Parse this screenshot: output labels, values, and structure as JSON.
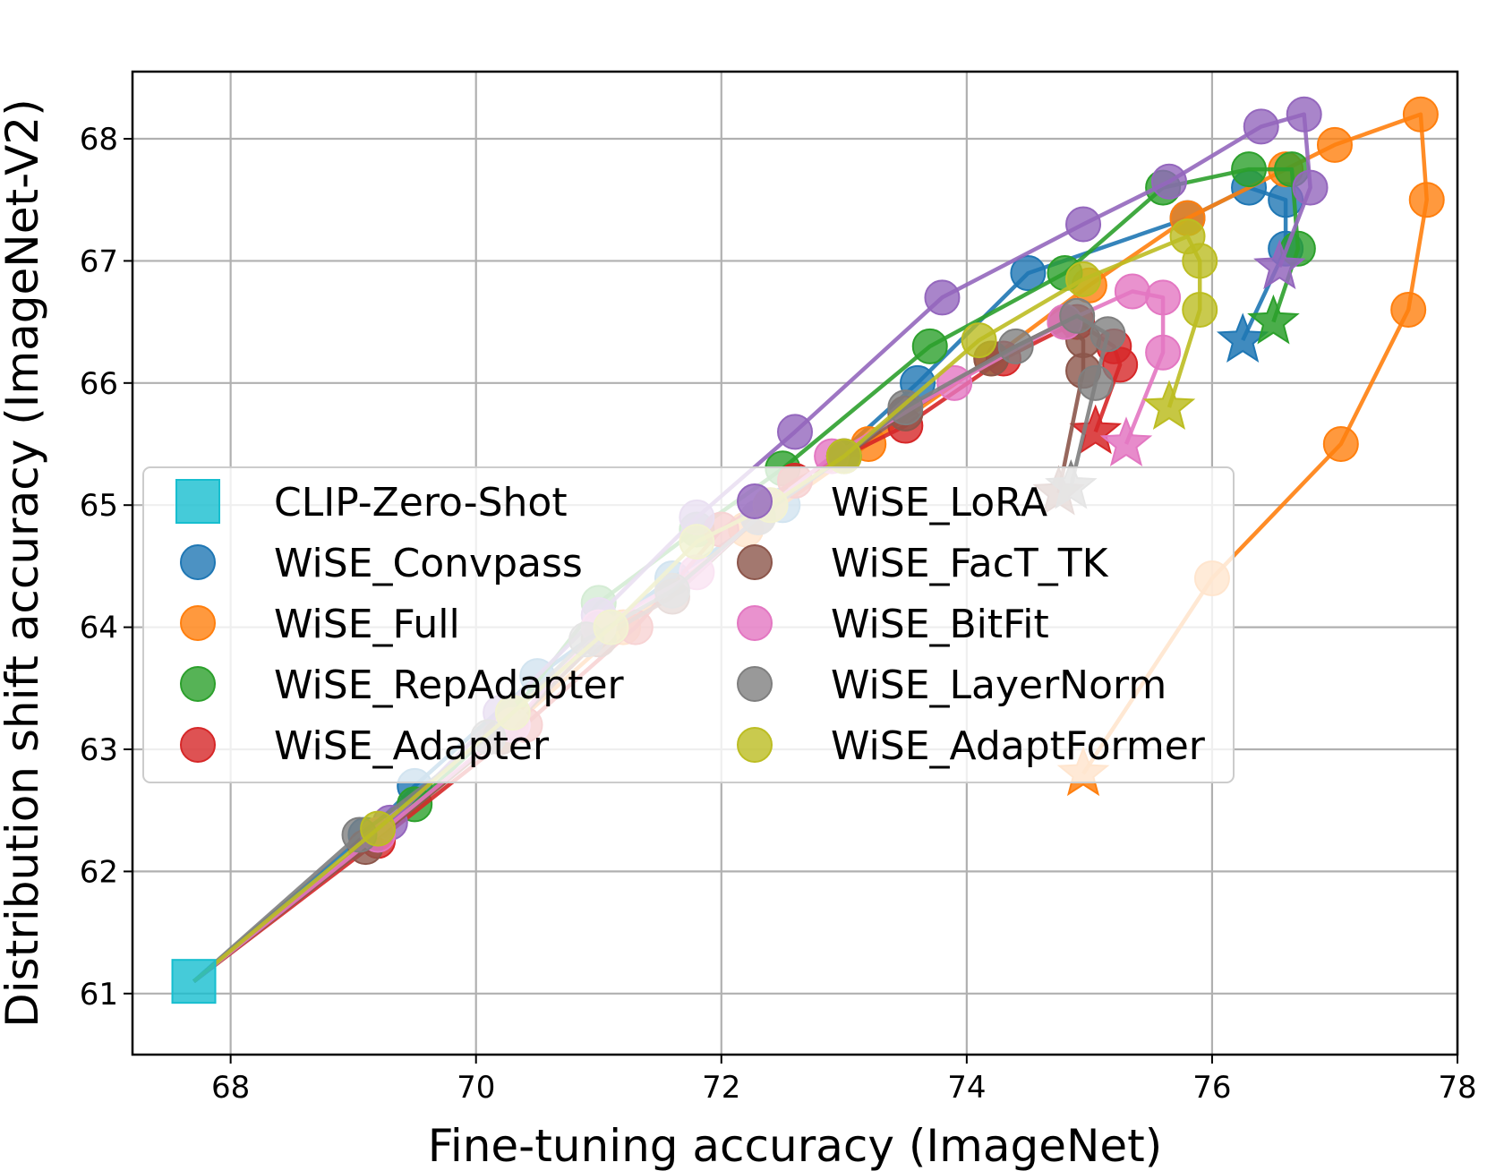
{
  "chart_data": {
    "type": "line",
    "title": "",
    "xlabel": "Fine-tuning accuracy (ImageNet)",
    "ylabel": "Distribution shift accuracy (ImageNet-V2)",
    "xlim": [
      67.2,
      78.0
    ],
    "ylim": [
      60.5,
      68.55
    ],
    "xticks": [
      68,
      70,
      72,
      74,
      76,
      78
    ],
    "yticks": [
      61,
      62,
      63,
      64,
      65,
      66,
      67,
      68
    ],
    "grid": true,
    "legend_position": "upper-left",
    "legend_columns": 2,
    "zero_shot": {
      "name": "CLIP-Zero-Shot",
      "color": "#17becf",
      "marker": "square",
      "x": 67.7,
      "y": 61.1
    },
    "series": [
      {
        "name": "WiSE_Convpass",
        "color": "#1f77b4",
        "x": [
          67.7,
          69.1,
          69.5,
          70.5,
          71.6,
          72.5,
          73.6,
          74.5,
          75.8,
          76.3,
          76.6,
          76.6,
          76.25
        ],
        "y": [
          61.1,
          62.3,
          62.7,
          63.6,
          64.4,
          65.0,
          66.0,
          66.9,
          67.35,
          67.6,
          67.5,
          67.1,
          66.35
        ],
        "star": [
          76.25,
          66.35
        ]
      },
      {
        "name": "WiSE_Full",
        "color": "#ff7f0e",
        "x": [
          67.7,
          69.2,
          70.2,
          71.2,
          72.2,
          73.2,
          74.2,
          75.0,
          75.8,
          76.6,
          77.0,
          77.7,
          77.75,
          77.6,
          77.05,
          76.0,
          74.95
        ],
        "y": [
          61.1,
          62.3,
          63.1,
          64.0,
          64.8,
          65.5,
          66.2,
          66.8,
          67.35,
          67.75,
          67.95,
          68.2,
          67.5,
          66.6,
          65.5,
          64.4,
          62.8
        ],
        "star": [
          74.95,
          62.8
        ]
      },
      {
        "name": "WiSE_RepAdapter",
        "color": "#2ca02c",
        "x": [
          67.7,
          69.5,
          70.3,
          71.0,
          71.8,
          72.5,
          73.7,
          74.8,
          75.6,
          76.3,
          76.65,
          76.7,
          76.5
        ],
        "y": [
          61.1,
          62.55,
          63.3,
          64.2,
          64.8,
          65.3,
          66.3,
          66.9,
          67.6,
          67.75,
          67.75,
          67.1,
          66.5
        ],
        "star": [
          76.5,
          66.5
        ]
      },
      {
        "name": "WiSE_Adapter",
        "color": "#d62728",
        "x": [
          67.7,
          69.2,
          70.4,
          71.3,
          72.0,
          72.6,
          73.5,
          74.3,
          74.9,
          75.2,
          75.25,
          75.05
        ],
        "y": [
          61.1,
          62.25,
          63.2,
          64.0,
          64.8,
          65.2,
          65.65,
          66.2,
          66.5,
          66.3,
          66.15,
          65.6
        ],
        "star": [
          75.05,
          65.6
        ]
      },
      {
        "name": "WiSE_LoRA",
        "color": "#9467bd",
        "x": [
          67.7,
          69.3,
          70.2,
          71.0,
          71.8,
          72.6,
          73.8,
          74.95,
          75.65,
          76.4,
          76.75,
          76.8,
          76.55
        ],
        "y": [
          61.1,
          62.4,
          63.3,
          64.1,
          64.9,
          65.6,
          66.7,
          67.3,
          67.65,
          68.1,
          68.2,
          67.6,
          66.95
        ],
        "star": [
          76.55,
          66.95
        ]
      },
      {
        "name": "WiSE_FacT_TK",
        "color": "#8c564b",
        "x": [
          67.7,
          69.1,
          70.2,
          71.0,
          71.6,
          72.3,
          73.0,
          73.5,
          74.2,
          74.8,
          74.95,
          74.95,
          74.75
        ],
        "y": [
          61.1,
          62.2,
          63.1,
          63.9,
          64.25,
          64.9,
          65.4,
          65.75,
          66.2,
          66.5,
          66.35,
          66.1,
          65.1
        ],
        "star": [
          74.75,
          65.1
        ]
      },
      {
        "name": "WiSE_BitFit",
        "color": "#e377c2",
        "x": [
          67.7,
          69.2,
          70.3,
          71.0,
          71.8,
          72.4,
          72.9,
          73.9,
          74.8,
          75.35,
          75.6,
          75.6,
          75.3
        ],
        "y": [
          61.1,
          62.3,
          63.2,
          64.0,
          64.45,
          65.0,
          65.4,
          66.0,
          66.5,
          66.75,
          66.7,
          66.25,
          65.5
        ],
        "star": [
          75.3,
          65.5
        ]
      },
      {
        "name": "WiSE_LayerNorm",
        "color": "#7f7f7f",
        "x": [
          67.7,
          69.05,
          70.1,
          70.9,
          71.6,
          72.3,
          73.0,
          73.5,
          74.4,
          74.9,
          75.15,
          75.05,
          74.85
        ],
        "y": [
          61.1,
          62.3,
          63.1,
          63.9,
          64.3,
          64.9,
          65.4,
          65.8,
          66.3,
          66.55,
          66.4,
          66.0,
          65.15
        ],
        "star": [
          74.85,
          65.15
        ]
      },
      {
        "name": "WiSE_AdaptFormer",
        "color": "#bcbd22",
        "x": [
          67.7,
          69.2,
          70.3,
          71.1,
          71.8,
          72.4,
          73.0,
          74.1,
          74.95,
          75.8,
          75.9,
          75.9,
          75.65
        ],
        "y": [
          61.1,
          62.35,
          63.3,
          64.0,
          64.7,
          65.0,
          65.4,
          66.35,
          66.85,
          67.2,
          67.0,
          66.6,
          65.8
        ],
        "star": [
          75.65,
          65.8
        ]
      }
    ]
  }
}
